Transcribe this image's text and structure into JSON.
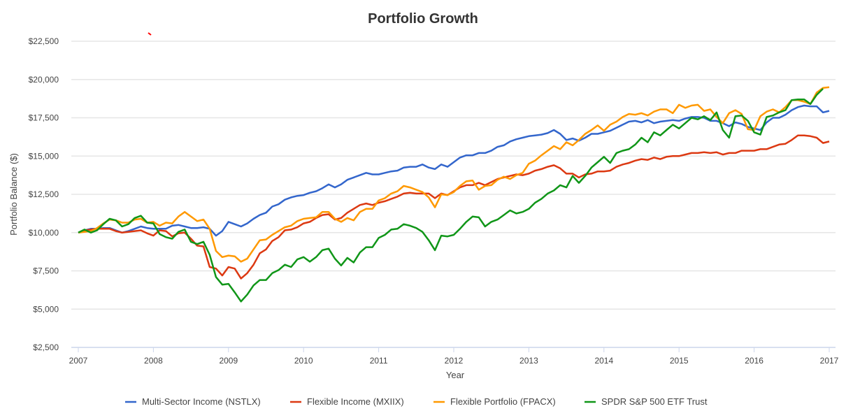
{
  "chart_data": {
    "type": "line",
    "title": "Portfolio Growth",
    "xlabel": "Year",
    "ylabel": "Portfolio Balance ($)",
    "x_start": 2007.0,
    "x_step_months": 1,
    "xlim": [
      2007,
      2017
    ],
    "ylim": [
      2500,
      22500
    ],
    "xticks": [
      "2007",
      "2008",
      "2009",
      "2010",
      "2011",
      "2012",
      "2013",
      "2014",
      "2015",
      "2016",
      "2017"
    ],
    "yticks": [
      "$2,500",
      "$5,000",
      "$7,500",
      "$10,000",
      "$12,500",
      "$15,000",
      "$17,500",
      "$20,000",
      "$22,500"
    ],
    "ytick_values": [
      2500,
      5000,
      7500,
      10000,
      12500,
      15000,
      17500,
      20000,
      22500
    ],
    "grid": true,
    "legend_position": "bottom",
    "series": [
      {
        "name": "Multi-Sector Income (NSTLX)",
        "color": "#3366cc",
        "values": [
          10000,
          10150,
          10250,
          10250,
          10300,
          10300,
          10150,
          10000,
          10100,
          10250,
          10400,
          10300,
          10250,
          10250,
          10250,
          10450,
          10500,
          10400,
          10300,
          10300,
          10350,
          10250,
          9800,
          10100,
          10700,
          10550,
          10400,
          10600,
          10900,
          11150,
          11300,
          11700,
          11850,
          12150,
          12300,
          12400,
          12450,
          12600,
          12700,
          12900,
          13150,
          12950,
          13150,
          13450,
          13600,
          13750,
          13900,
          13800,
          13800,
          13900,
          14000,
          14050,
          14250,
          14300,
          14300,
          14450,
          14250,
          14150,
          14450,
          14300,
          14600,
          14900,
          15050,
          15050,
          15200,
          15200,
          15350,
          15600,
          15700,
          15950,
          16100,
          16200,
          16300,
          16350,
          16400,
          16500,
          16700,
          16450,
          16050,
          16150,
          16000,
          16200,
          16450,
          16450,
          16550,
          16650,
          16850,
          17050,
          17250,
          17300,
          17200,
          17350,
          17150,
          17250,
          17300,
          17350,
          17300,
          17450,
          17550,
          17550,
          17500,
          17300,
          17300,
          17150,
          16950,
          17200,
          17100,
          16900,
          16800,
          16700,
          17200,
          17500,
          17500,
          17700,
          18000,
          18200,
          18300,
          18250,
          18250,
          17850,
          17950
        ]
      },
      {
        "name": "Flexible Income (MXIIX)",
        "color": "#dc3912",
        "values": [
          10000,
          10150,
          10200,
          10250,
          10250,
          10250,
          10100,
          10000,
          10050,
          10100,
          10150,
          9950,
          9800,
          10150,
          10100,
          9750,
          9950,
          10000,
          9600,
          9150,
          9100,
          7750,
          7650,
          7200,
          7750,
          7650,
          7000,
          7350,
          7900,
          8650,
          8900,
          9450,
          9700,
          10150,
          10200,
          10350,
          10600,
          10700,
          10950,
          11150,
          11200,
          10850,
          10950,
          11300,
          11550,
          11800,
          11900,
          11800,
          11950,
          12050,
          12200,
          12350,
          12550,
          12600,
          12550,
          12550,
          12550,
          12250,
          12550,
          12450,
          12700,
          12950,
          13100,
          13100,
          13250,
          13100,
          13300,
          13500,
          13600,
          13700,
          13800,
          13750,
          13850,
          14050,
          14150,
          14300,
          14400,
          14200,
          13850,
          13850,
          13600,
          13800,
          13850,
          14000,
          14000,
          14050,
          14300,
          14450,
          14550,
          14700,
          14800,
          14750,
          14900,
          14800,
          14950,
          15000,
          15000,
          15100,
          15200,
          15200,
          15250,
          15200,
          15250,
          15100,
          15200,
          15200,
          15350,
          15350,
          15350,
          15450,
          15450,
          15600,
          15750,
          15800,
          16050,
          16350,
          16350,
          16300,
          16200,
          15850,
          15950
        ]
      },
      {
        "name": "Flexible Portfolio (FPACX)",
        "color": "#ff9900",
        "values": [
          10000,
          10050,
          10100,
          10300,
          10600,
          10850,
          10800,
          10650,
          10650,
          10850,
          10900,
          10650,
          10700,
          10450,
          10650,
          10600,
          11050,
          11350,
          11050,
          10750,
          10850,
          10250,
          8800,
          8400,
          8500,
          8450,
          8100,
          8300,
          8900,
          9500,
          9550,
          9850,
          10100,
          10350,
          10450,
          10750,
          10900,
          10950,
          11000,
          11350,
          11350,
          10900,
          10700,
          10950,
          10800,
          11350,
          11550,
          11550,
          12100,
          12250,
          12550,
          12700,
          13050,
          12950,
          12800,
          12650,
          12300,
          11650,
          12500,
          12450,
          12650,
          13050,
          13350,
          13400,
          12800,
          13050,
          13100,
          13450,
          13650,
          13500,
          13750,
          13900,
          14500,
          14700,
          15050,
          15350,
          15650,
          15450,
          15900,
          15700,
          16050,
          16450,
          16700,
          17000,
          16650,
          17050,
          17250,
          17550,
          17750,
          17700,
          17800,
          17650,
          17900,
          18050,
          18050,
          17800,
          18350,
          18150,
          18300,
          18350,
          17950,
          18050,
          17550,
          17150,
          17800,
          18000,
          17750,
          16750,
          16700,
          17600,
          17900,
          18050,
          17850,
          18200,
          18650,
          18650,
          18550,
          18400,
          19150,
          19450,
          19500
        ]
      },
      {
        "name": "SPDR S&P 500 ETF Trust",
        "color": "#109618",
        "values": [
          10000,
          10200,
          10000,
          10150,
          10550,
          10900,
          10800,
          10400,
          10550,
          10950,
          11100,
          10650,
          10600,
          9900,
          9700,
          9600,
          10050,
          10200,
          9400,
          9250,
          9400,
          8550,
          7100,
          6600,
          6650,
          6100,
          5500,
          5950,
          6550,
          6900,
          6900,
          7350,
          7550,
          7900,
          7750,
          8250,
          8400,
          8100,
          8400,
          8850,
          8950,
          8300,
          7850,
          8350,
          8050,
          8700,
          9050,
          9050,
          9650,
          9850,
          10200,
          10250,
          10550,
          10450,
          10300,
          10050,
          9500,
          8850,
          9800,
          9750,
          9850,
          10250,
          10700,
          11050,
          11000,
          10400,
          10700,
          10850,
          11150,
          11450,
          11250,
          11350,
          11550,
          11950,
          12200,
          12550,
          12750,
          13100,
          12950,
          13700,
          13250,
          13700,
          14250,
          14600,
          14950,
          14550,
          15200,
          15350,
          15450,
          15750,
          16200,
          15900,
          16550,
          16350,
          16700,
          17050,
          16800,
          17150,
          17500,
          17400,
          17600,
          17350,
          17850,
          16700,
          16200,
          17600,
          17650,
          17300,
          16550,
          16400,
          17550,
          17650,
          17850,
          18000,
          18650,
          18700,
          18700,
          18400,
          19000,
          19400
        ]
      }
    ]
  }
}
